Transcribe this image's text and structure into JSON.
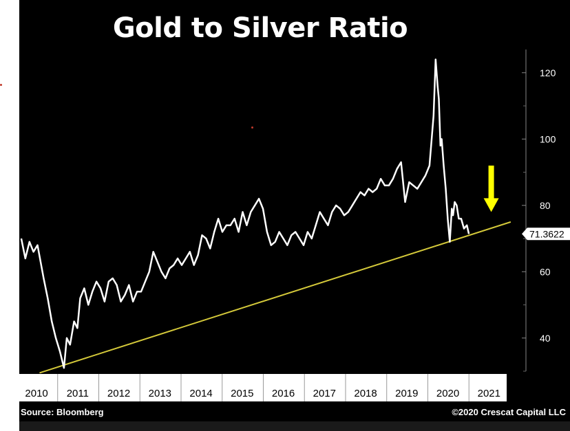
{
  "colors": {
    "background": "#000000",
    "series": "#ffffff",
    "trendline": "#d4c93a",
    "arrow": "#ffff00",
    "x_axis_band": "#ffffff"
  },
  "source": "Source: Bloomberg",
  "copyright": "©2020 Crescat Capital LLC",
  "chart_data": {
    "type": "line",
    "title": "Gold to Silver Ratio",
    "xlabel": "",
    "ylabel": "",
    "x_tick_labels": [
      "2010",
      "2011",
      "2012",
      "2013",
      "2014",
      "2015",
      "2016",
      "2017",
      "2018",
      "2019",
      "2020",
      "2021"
    ],
    "y_ticks": [
      40,
      60,
      80,
      100,
      120
    ],
    "ylim": [
      30,
      127
    ],
    "xlim": [
      2009.9,
      2021.9
    ],
    "y_axis_position": "right",
    "grid": false,
    "last_value_label": "71.3622",
    "series": [
      {
        "x": [
          2009.95,
          2010.05,
          2010.15,
          2010.25,
          2010.35,
          2010.5,
          2010.6,
          2010.7,
          2010.8,
          2010.9,
          2011.0,
          2011.07,
          2011.15,
          2011.25,
          2011.33,
          2011.4,
          2011.5,
          2011.6,
          2011.7,
          2011.8,
          2011.9,
          2012.0,
          2012.1,
          2012.2,
          2012.3,
          2012.4,
          2012.5,
          2012.6,
          2012.7,
          2012.8,
          2012.9,
          2013.0,
          2013.1,
          2013.2,
          2013.3,
          2013.4,
          2013.5,
          2013.6,
          2013.7,
          2013.8,
          2013.9,
          2014.0,
          2014.1,
          2014.2,
          2014.3,
          2014.4,
          2014.5,
          2014.6,
          2014.7,
          2014.8,
          2014.9,
          2015.0,
          2015.1,
          2015.2,
          2015.3,
          2015.4,
          2015.5,
          2015.6,
          2015.7,
          2015.8,
          2015.9,
          2016.0,
          2016.1,
          2016.2,
          2016.3,
          2016.4,
          2016.5,
          2016.6,
          2016.7,
          2016.8,
          2016.9,
          2017.0,
          2017.1,
          2017.2,
          2017.3,
          2017.4,
          2017.5,
          2017.6,
          2017.7,
          2017.8,
          2017.9,
          2018.0,
          2018.1,
          2018.2,
          2018.3,
          2018.4,
          2018.5,
          2018.6,
          2018.7,
          2018.8,
          2018.9,
          2019.0,
          2019.1,
          2019.2,
          2019.3,
          2019.4,
          2019.5,
          2019.6,
          2019.7,
          2019.8,
          2019.9,
          2020.0,
          2020.1,
          2020.15,
          2020.2,
          2020.23,
          2020.27,
          2020.3,
          2020.35,
          2020.4,
          2020.45,
          2020.5,
          2020.55,
          2020.58,
          2020.62,
          2020.67,
          2020.72,
          2020.78,
          2020.85,
          2020.92,
          2020.97
        ],
        "values": [
          70,
          64,
          69,
          66,
          68,
          58,
          52,
          45,
          40,
          36,
          31,
          40,
          38,
          45,
          43,
          52,
          55,
          50,
          54,
          57,
          55,
          51,
          57,
          58,
          56,
          51,
          53,
          56,
          51,
          54,
          54,
          57,
          60,
          66,
          63,
          60,
          58,
          61,
          62,
          64,
          62,
          64,
          66,
          62,
          65,
          71,
          70,
          67,
          72,
          76,
          72,
          74,
          74,
          76,
          72,
          78,
          74,
          78,
          80,
          82,
          79,
          72,
          68,
          69,
          72,
          70,
          68,
          71,
          72,
          70,
          68,
          72,
          70,
          74,
          78,
          76,
          74,
          78,
          80,
          79,
          77,
          78,
          80,
          82,
          84,
          83,
          85,
          84,
          85,
          88,
          86,
          86,
          88,
          91,
          93,
          81,
          87,
          86,
          85,
          87,
          89,
          92,
          107,
          124,
          116,
          112,
          98,
          100,
          92,
          85,
          76,
          69,
          79,
          77,
          81,
          80,
          76,
          76,
          73,
          74,
          71.4
        ]
      }
    ],
    "trendline": {
      "x": [
        2010.4,
        2022.0
      ],
      "y": [
        29.5,
        75
      ]
    },
    "annotations": [
      {
        "type": "arrow",
        "direction": "down",
        "x": 2021.52,
        "y_from": 92,
        "y_to": 78
      }
    ]
  }
}
